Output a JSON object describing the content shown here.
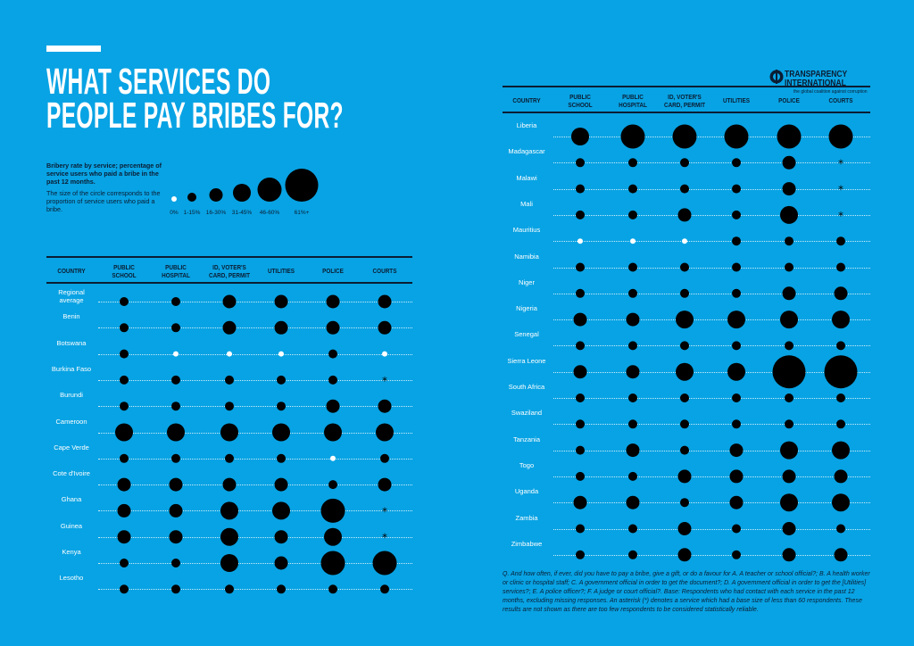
{
  "title": {
    "line1": "WHAT SERVICES DO",
    "line2": "PEOPLE PAY BRIBES FOR?"
  },
  "logo": {
    "name_line1": "TRANSPARENCY",
    "name_line2": "INTERNATIONAL",
    "tagline": "the global coalition against corruption"
  },
  "legend": {
    "heading": "Bribery rate by service; percentage of service users who paid a bribe in the past 12 months.",
    "body": "The size of the circle corresponds to the proportion of service users who paid a bribe.",
    "categories": [
      "0%",
      "1-15%",
      "16-30%",
      "31-45%",
      "46-60%",
      "61%+"
    ],
    "zero_color": "#ffffff",
    "dot_color": "#000000"
  },
  "footnote": "Q. And how often, if ever, did you have to pay a bribe, give a gift, or do a favour for A. A teacher or school official?; B. A health worker or clinic or hospital staff; C. A government official in order to get the document?; D. A government official in order to get the [Utilities] services?; E. A police officer?; F. A judge or court official?. Base: Respondents who had contact with each service in the past 12 months, excluding missing responses. An asterisk (*) denotes a service which had a base size of less than 60 respondents. These results are not shown as there are too few respondents to be considered statistically reliable.",
  "chart_data": {
    "type": "table",
    "encoding": "bubble size category index into legend.categories; '*' = too few respondents",
    "columns": [
      "COUNTRY",
      "PUBLIC SCHOOL",
      "PUBLIC HOSPITAL",
      "ID, VOTER'S CARD, PERMIT",
      "UTILITIES",
      "POLICE",
      "COURTS"
    ],
    "tables": [
      {
        "rows": [
          {
            "country": "Regional average",
            "values": [
              1,
              1,
              2,
              2,
              2,
              2
            ]
          },
          {
            "country": "Benin",
            "values": [
              1,
              1,
              2,
              2,
              2,
              2
            ]
          },
          {
            "country": "Botswana",
            "values": [
              1,
              0,
              0,
              0,
              1,
              0
            ]
          },
          {
            "country": "Burkina Faso",
            "values": [
              1,
              1,
              1,
              1,
              1,
              "*"
            ]
          },
          {
            "country": "Burundi",
            "values": [
              1,
              1,
              1,
              1,
              2,
              2
            ]
          },
          {
            "country": "Cameroon",
            "values": [
              3,
              3,
              3,
              3,
              3,
              3
            ]
          },
          {
            "country": "Cape Verde",
            "values": [
              1,
              1,
              1,
              1,
              0,
              1
            ]
          },
          {
            "country": "Cote d'Ivoire",
            "values": [
              2,
              2,
              2,
              2,
              1,
              2
            ]
          },
          {
            "country": "Ghana",
            "values": [
              2,
              2,
              3,
              3,
              4,
              "*"
            ]
          },
          {
            "country": "Guinea",
            "values": [
              2,
              2,
              3,
              2,
              3,
              "*"
            ]
          },
          {
            "country": "Kenya",
            "values": [
              1,
              1,
              3,
              2,
              4,
              4
            ]
          },
          {
            "country": "Lesotho",
            "values": [
              1,
              1,
              1,
              1,
              1,
              1
            ]
          }
        ]
      },
      {
        "rows": [
          {
            "country": "Liberia",
            "values": [
              3,
              4,
              4,
              4,
              4,
              4
            ]
          },
          {
            "country": "Madagascar",
            "values": [
              1,
              1,
              1,
              1,
              2,
              "*"
            ]
          },
          {
            "country": "Malawi",
            "values": [
              1,
              1,
              1,
              1,
              2,
              "*"
            ]
          },
          {
            "country": "Mali",
            "values": [
              1,
              1,
              2,
              1,
              3,
              "*"
            ]
          },
          {
            "country": "Mauritius",
            "values": [
              0,
              0,
              0,
              1,
              1,
              1
            ]
          },
          {
            "country": "Namibia",
            "values": [
              1,
              1,
              1,
              1,
              1,
              1
            ]
          },
          {
            "country": "Niger",
            "values": [
              1,
              1,
              1,
              1,
              2,
              2
            ]
          },
          {
            "country": "Nigeria",
            "values": [
              2,
              2,
              3,
              3,
              3,
              3
            ]
          },
          {
            "country": "Senegal",
            "values": [
              1,
              1,
              1,
              1,
              1,
              1
            ]
          },
          {
            "country": "Sierra Leone",
            "values": [
              2,
              2,
              3,
              3,
              5,
              5
            ]
          },
          {
            "country": "South Africa",
            "values": [
              1,
              1,
              1,
              1,
              1,
              1
            ]
          },
          {
            "country": "Swaziland",
            "values": [
              1,
              1,
              1,
              1,
              1,
              1
            ]
          },
          {
            "country": "Tanzania",
            "values": [
              1,
              2,
              1,
              2,
              3,
              3
            ]
          },
          {
            "country": "Togo",
            "values": [
              1,
              1,
              2,
              2,
              2,
              2
            ]
          },
          {
            "country": "Uganda",
            "values": [
              2,
              2,
              1,
              2,
              3,
              3
            ]
          },
          {
            "country": "Zambia",
            "values": [
              1,
              1,
              2,
              1,
              2,
              1
            ]
          },
          {
            "country": "Zimbabwe",
            "values": [
              1,
              1,
              2,
              1,
              2,
              2
            ]
          }
        ]
      }
    ]
  }
}
